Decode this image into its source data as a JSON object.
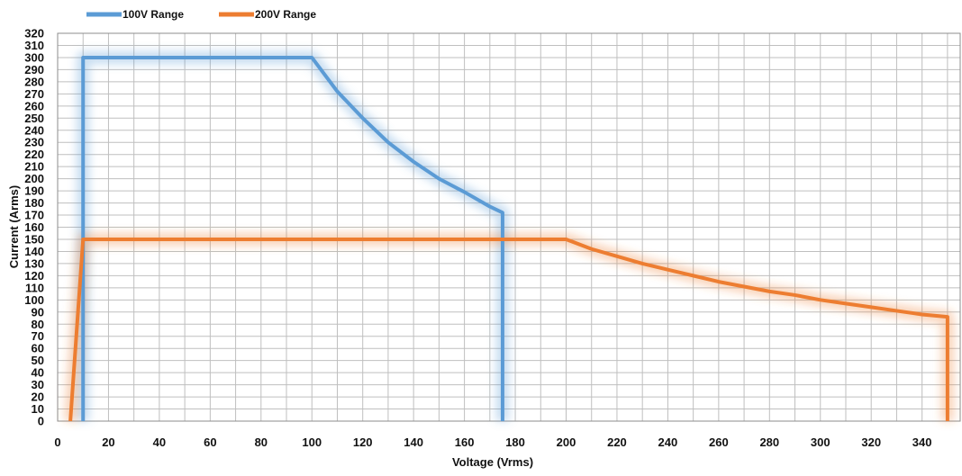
{
  "chart_data": {
    "type": "line",
    "title": "",
    "xlabel": "Voltage  (Vrms)",
    "ylabel": "Current (Arms)",
    "xlim": [
      0,
      355
    ],
    "ylim": [
      0,
      320
    ],
    "xticks": [
      0,
      20,
      40,
      60,
      80,
      100,
      120,
      140,
      160,
      180,
      200,
      220,
      240,
      260,
      280,
      300,
      320,
      340
    ],
    "yticks": [
      0,
      10,
      20,
      30,
      40,
      50,
      60,
      70,
      80,
      90,
      100,
      110,
      120,
      130,
      140,
      150,
      160,
      170,
      180,
      190,
      200,
      210,
      220,
      230,
      240,
      250,
      260,
      270,
      280,
      290,
      300,
      310,
      320
    ],
    "grid": true,
    "legend_position": "top-left",
    "series": [
      {
        "name": "100V Range",
        "color": "#5b9bd5",
        "points": [
          [
            10,
            0
          ],
          [
            10,
            300
          ],
          [
            100,
            300
          ],
          [
            110,
            272
          ],
          [
            120,
            250
          ],
          [
            130,
            230
          ],
          [
            140,
            214
          ],
          [
            150,
            200
          ],
          [
            160,
            189
          ],
          [
            170,
            177
          ],
          [
            175,
            172
          ],
          [
            175,
            0
          ]
        ]
      },
      {
        "name": "200V Range",
        "color": "#ed7d31",
        "points": [
          [
            5,
            0
          ],
          [
            10,
            150
          ],
          [
            200,
            150
          ],
          [
            210,
            142
          ],
          [
            220,
            136
          ],
          [
            230,
            130
          ],
          [
            240,
            125
          ],
          [
            250,
            120
          ],
          [
            260,
            115
          ],
          [
            270,
            111
          ],
          [
            280,
            107
          ],
          [
            290,
            104
          ],
          [
            300,
            100
          ],
          [
            310,
            97
          ],
          [
            320,
            94
          ],
          [
            330,
            91
          ],
          [
            340,
            88
          ],
          [
            350,
            86
          ],
          [
            350,
            0
          ]
        ]
      }
    ]
  }
}
